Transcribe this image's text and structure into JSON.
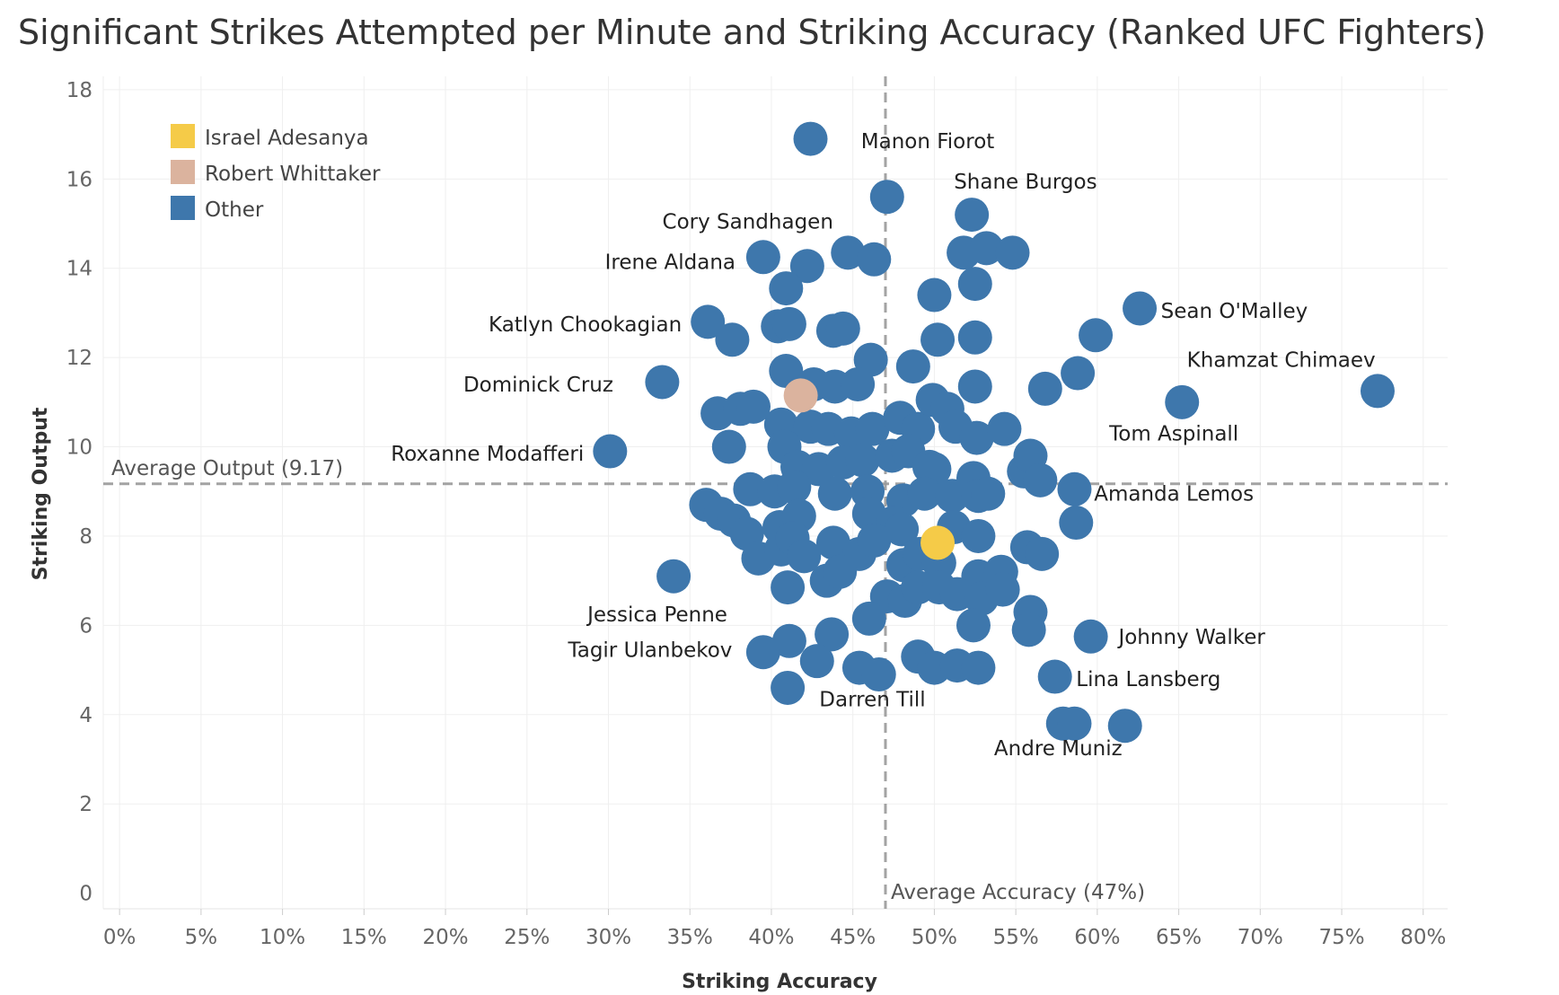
{
  "chart_data": {
    "type": "scatter",
    "title": "Significant Strikes Attempted per Minute and Striking Accuracy (Ranked UFC Fighters)",
    "xlabel": "Striking Accuracy",
    "ylabel": "Striking Output",
    "xlim": [
      -1,
      81.5
    ],
    "ylim": [
      -0.35,
      18.3
    ],
    "x_ticks": [
      0,
      5,
      10,
      15,
      20,
      25,
      30,
      35,
      40,
      45,
      50,
      55,
      60,
      65,
      70,
      75,
      80
    ],
    "x_tick_labels": [
      "0%",
      "5%",
      "10%",
      "15%",
      "20%",
      "25%",
      "30%",
      "35%",
      "40%",
      "45%",
      "50%",
      "55%",
      "60%",
      "65%",
      "70%",
      "75%",
      "80%"
    ],
    "y_ticks": [
      0,
      2,
      4,
      6,
      8,
      10,
      12,
      14,
      16,
      18
    ],
    "y_tick_labels": [
      "0",
      "2",
      "4",
      "6",
      "8",
      "10",
      "12",
      "14",
      "16",
      "18"
    ],
    "grid": true,
    "legend_position": "top-left",
    "legend": [
      {
        "name": "Israel Adesanya",
        "color": "#F5CB48"
      },
      {
        "name": "Robert Whittaker",
        "color": "#DBB39E"
      },
      {
        "name": "Other",
        "color": "#3E77AC"
      }
    ],
    "reference_lines": {
      "x": {
        "value": 47,
        "label": "Average Accuracy (47%)"
      },
      "y": {
        "value": 9.17,
        "label": "Average Output (9.17)"
      }
    },
    "labels": [
      {
        "text": "Manon Fiorot",
        "x": 45.5,
        "y": 16.85,
        "anchor": "start"
      },
      {
        "text": "Shane Burgos",
        "x": 51.2,
        "y": 15.95,
        "anchor": "start"
      },
      {
        "text": "Cory Sandhagen",
        "x": 43.8,
        "y": 15.05,
        "anchor": "end"
      },
      {
        "text": "Irene Aldana",
        "x": 37.8,
        "y": 14.15,
        "anchor": "end"
      },
      {
        "text": "Katlyn Chookagian",
        "x": 34.5,
        "y": 12.75,
        "anchor": "end"
      },
      {
        "text": "Sean O'Malley",
        "x": 63.9,
        "y": 13.05,
        "anchor": "start"
      },
      {
        "text": "Khamzat Chimaev",
        "x": 65.5,
        "y": 11.95,
        "anchor": "start"
      },
      {
        "text": "Dominick Cruz",
        "x": 30.3,
        "y": 11.4,
        "anchor": "end"
      },
      {
        "text": "Tom Aspinall",
        "x": 64.7,
        "y": 10.3,
        "anchor": "middle"
      },
      {
        "text": "Roxanne Modafferi",
        "x": 28.5,
        "y": 9.85,
        "anchor": "end"
      },
      {
        "text": "Amanda Lemos",
        "x": 59.8,
        "y": 8.95,
        "anchor": "start"
      },
      {
        "text": "Jessica Penne",
        "x": 37.3,
        "y": 6.25,
        "anchor": "end"
      },
      {
        "text": "Johnny Walker",
        "x": 61.3,
        "y": 5.75,
        "anchor": "start"
      },
      {
        "text": "Tagir Ulanbekov",
        "x": 37.6,
        "y": 5.45,
        "anchor": "end"
      },
      {
        "text": "Lina Lansberg",
        "x": 58.7,
        "y": 4.8,
        "anchor": "start"
      },
      {
        "text": "Darren Till",
        "x": 46.2,
        "y": 4.35,
        "anchor": "middle"
      },
      {
        "text": "Andre Muniz",
        "x": 57.6,
        "y": 3.25,
        "anchor": "middle"
      }
    ],
    "series": [
      {
        "name": "Other",
        "color": "#3E77AC",
        "points": [
          [
            42.4,
            16.9
          ],
          [
            47.1,
            15.6
          ],
          [
            52.3,
            15.2
          ],
          [
            39.5,
            14.25
          ],
          [
            42.2,
            14.05
          ],
          [
            44.7,
            14.35
          ],
          [
            46.3,
            14.2
          ],
          [
            51.8,
            14.35
          ],
          [
            53.2,
            14.45
          ],
          [
            54.8,
            14.35
          ],
          [
            40.9,
            13.55
          ],
          [
            52.5,
            13.65
          ],
          [
            50.0,
            13.4
          ],
          [
            62.6,
            13.1
          ],
          [
            36.1,
            12.8
          ],
          [
            37.6,
            12.4
          ],
          [
            40.4,
            12.7
          ],
          [
            41.1,
            12.75
          ],
          [
            43.8,
            12.6
          ],
          [
            44.4,
            12.65
          ],
          [
            50.2,
            12.4
          ],
          [
            52.5,
            12.45
          ],
          [
            59.9,
            12.5
          ],
          [
            33.3,
            11.45
          ],
          [
            40.9,
            11.7
          ],
          [
            46.1,
            11.95
          ],
          [
            48.7,
            11.8
          ],
          [
            42.6,
            11.4
          ],
          [
            43.9,
            11.35
          ],
          [
            45.3,
            11.4
          ],
          [
            52.5,
            11.35
          ],
          [
            56.8,
            11.3
          ],
          [
            58.8,
            11.65
          ],
          [
            77.2,
            11.25
          ],
          [
            65.2,
            11.0
          ],
          [
            36.7,
            10.75
          ],
          [
            38.1,
            10.85
          ],
          [
            38.9,
            10.9
          ],
          [
            40.6,
            10.5
          ],
          [
            42.4,
            10.45
          ],
          [
            43.5,
            10.4
          ],
          [
            44.9,
            10.3
          ],
          [
            46.2,
            10.4
          ],
          [
            47.9,
            10.65
          ],
          [
            49.0,
            10.4
          ],
          [
            49.9,
            11.05
          ],
          [
            50.8,
            10.85
          ],
          [
            51.3,
            10.45
          ],
          [
            52.6,
            10.2
          ],
          [
            54.3,
            10.4
          ],
          [
            37.4,
            10.0
          ],
          [
            40.8,
            10.0
          ],
          [
            41.6,
            9.55
          ],
          [
            42.9,
            9.5
          ],
          [
            44.4,
            9.65
          ],
          [
            45.6,
            9.7
          ],
          [
            47.4,
            9.8
          ],
          [
            48.4,
            9.9
          ],
          [
            49.7,
            9.55
          ],
          [
            50.0,
            9.5
          ],
          [
            52.4,
            9.3
          ],
          [
            55.5,
            9.45
          ],
          [
            55.9,
            9.8
          ],
          [
            56.5,
            9.25
          ],
          [
            58.6,
            9.05
          ],
          [
            30.1,
            9.9
          ],
          [
            38.7,
            9.05
          ],
          [
            40.2,
            9.0
          ],
          [
            41.4,
            9.1
          ],
          [
            43.9,
            8.95
          ],
          [
            45.9,
            9.0
          ],
          [
            48.1,
            8.8
          ],
          [
            49.4,
            8.95
          ],
          [
            51.1,
            8.9
          ],
          [
            52.7,
            8.9
          ],
          [
            53.3,
            8.95
          ],
          [
            36.0,
            8.7
          ],
          [
            36.9,
            8.5
          ],
          [
            37.7,
            8.35
          ],
          [
            38.5,
            8.05
          ],
          [
            40.5,
            8.2
          ],
          [
            41.7,
            8.45
          ],
          [
            46.0,
            8.5
          ],
          [
            47.5,
            8.3
          ],
          [
            48.0,
            8.15
          ],
          [
            51.2,
            8.2
          ],
          [
            52.7,
            8.0
          ],
          [
            58.7,
            8.3
          ],
          [
            39.2,
            7.5
          ],
          [
            40.6,
            7.7
          ],
          [
            41.3,
            7.95
          ],
          [
            42.0,
            7.55
          ],
          [
            43.8,
            7.85
          ],
          [
            45.4,
            7.6
          ],
          [
            46.3,
            7.9
          ],
          [
            48.1,
            7.35
          ],
          [
            49.1,
            7.6
          ],
          [
            50.3,
            7.4
          ],
          [
            52.7,
            7.1
          ],
          [
            54.1,
            7.2
          ],
          [
            55.7,
            7.75
          ],
          [
            56.6,
            7.6
          ],
          [
            34.0,
            7.1
          ],
          [
            41.0,
            6.85
          ],
          [
            43.4,
            7.0
          ],
          [
            44.2,
            7.2
          ],
          [
            47.1,
            6.65
          ],
          [
            48.2,
            6.55
          ],
          [
            49.0,
            6.85
          ],
          [
            50.3,
            6.85
          ],
          [
            51.4,
            6.7
          ],
          [
            52.9,
            6.6
          ],
          [
            54.2,
            6.8
          ],
          [
            55.9,
            6.3
          ],
          [
            46.0,
            6.15
          ],
          [
            52.4,
            6.0
          ],
          [
            55.8,
            5.9
          ],
          [
            59.6,
            5.75
          ],
          [
            41.1,
            5.65
          ],
          [
            43.7,
            5.8
          ],
          [
            39.5,
            5.4
          ],
          [
            42.8,
            5.2
          ],
          [
            45.4,
            5.05
          ],
          [
            46.6,
            4.9
          ],
          [
            49.0,
            5.3
          ],
          [
            50.0,
            5.05
          ],
          [
            51.4,
            5.1
          ],
          [
            52.7,
            5.05
          ],
          [
            57.4,
            4.85
          ],
          [
            41.0,
            4.6
          ],
          [
            57.9,
            3.8
          ],
          [
            58.6,
            3.8
          ],
          [
            61.7,
            3.75
          ]
        ]
      },
      {
        "name": "Robert Whittaker",
        "color": "#DBB39E",
        "points": [
          [
            41.8,
            11.15
          ]
        ]
      },
      {
        "name": "Israel Adesanya",
        "color": "#F5CB48",
        "points": [
          [
            50.2,
            7.85
          ]
        ]
      }
    ]
  }
}
